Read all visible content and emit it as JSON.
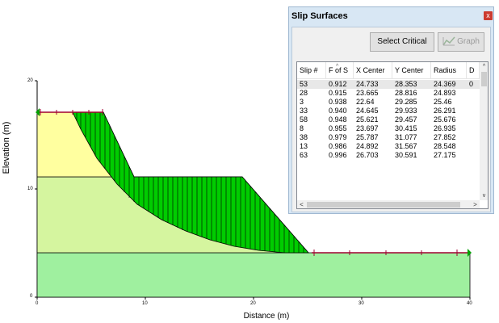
{
  "plot": {
    "y_axis_title": "Elevation (m)",
    "x_axis_title": "Distance (m)",
    "x_ticks": [
      "0",
      "10",
      "20",
      "30",
      "40"
    ],
    "y_ticks": [
      "0",
      "10",
      "20"
    ],
    "colors": {
      "upper_soil": "#ffff9f",
      "middle_soil": "#d5f59f",
      "lower_soil": "#9ff09f",
      "slip_mass": "#00cc00",
      "water_line": "#a00030",
      "boundary_marker": "#00a000"
    }
  },
  "dialog": {
    "title": "Slip Surfaces",
    "close_glyph": "x",
    "select_critical_label": "Select Critical",
    "graph_label": "Graph",
    "columns": [
      "Slip #",
      "F of S",
      "X Center",
      "Y Center",
      "Radius",
      "D"
    ],
    "rows": [
      [
        "53",
        "0.912",
        "24.733",
        "28.353",
        "24.369",
        "0"
      ],
      [
        "28",
        "0.915",
        "23.665",
        "28.816",
        "24.893",
        ""
      ],
      [
        "3",
        "0.938",
        "22.64",
        "29.285",
        "25.46",
        ""
      ],
      [
        "33",
        "0.940",
        "24.645",
        "29.933",
        "26.291",
        ""
      ],
      [
        "58",
        "0.948",
        "25.621",
        "29.457",
        "25.676",
        ""
      ],
      [
        "8",
        "0.955",
        "23.697",
        "30.415",
        "26.935",
        ""
      ],
      [
        "38",
        "0.979",
        "25.787",
        "31.077",
        "27.852",
        ""
      ],
      [
        "13",
        "0.986",
        "24.892",
        "31.567",
        "28.548",
        ""
      ],
      [
        "63",
        "0.996",
        "26.703",
        "30.591",
        "27.175",
        ""
      ]
    ],
    "scroll_up_glyph": "^",
    "scroll_down_glyph": "v",
    "scroll_left_glyph": "<",
    "scroll_right_glyph": ">"
  }
}
